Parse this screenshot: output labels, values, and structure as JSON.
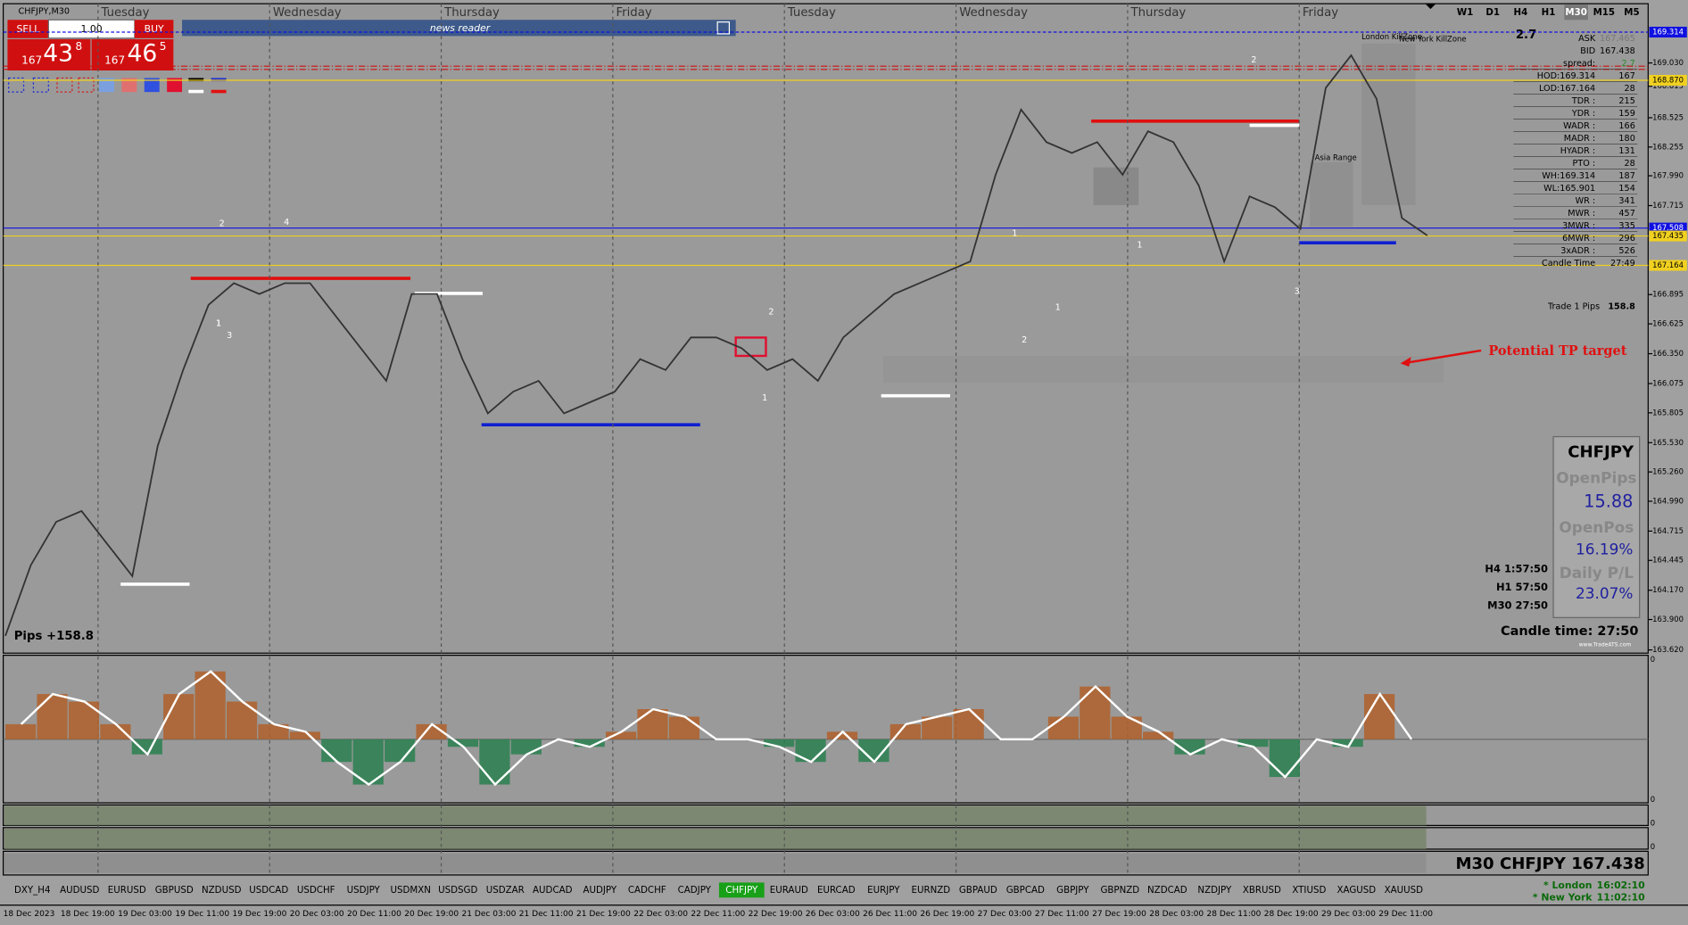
{
  "window_title": "CHFJPY,M30",
  "trade_panel": {
    "sell": "SELL",
    "lot": "1.00",
    "buy": "BUY",
    "bid": {
      "big": "167",
      "mid": "43",
      "small": "8"
    },
    "ask": {
      "big": "167",
      "mid": "46",
      "small": "5"
    }
  },
  "news_reader": "news reader",
  "timeframes": [
    "W1",
    "D1",
    "H4",
    "H1",
    "M30",
    "M15",
    "M5"
  ],
  "active_timeframe": 4,
  "day_labels": [
    "Tuesday",
    "Wednesday",
    "Thursday",
    "Friday",
    "Tuesday",
    "Wednesday",
    "Thursday",
    "Friday"
  ],
  "price_axis": {
    "ticks": [
      {
        "value": 169.03,
        "label": "169.030"
      },
      {
        "value": 168.815,
        "label": "168.815"
      },
      {
        "value": 168.525,
        "label": "168.525"
      },
      {
        "value": 168.255,
        "label": "168.255"
      },
      {
        "value": 167.99,
        "label": "167.990"
      },
      {
        "value": 167.715,
        "label": "167.715"
      },
      {
        "value": 166.895,
        "label": "166.895"
      },
      {
        "value": 166.625,
        "label": "166.625"
      },
      {
        "value": 166.35,
        "label": "166.350"
      },
      {
        "value": 166.075,
        "label": "166.075"
      },
      {
        "value": 165.805,
        "label": "165.805"
      },
      {
        "value": 165.53,
        "label": "165.530"
      },
      {
        "value": 165.26,
        "label": "165.260"
      },
      {
        "value": 164.99,
        "label": "164.990"
      },
      {
        "value": 164.715,
        "label": "164.715"
      },
      {
        "value": 164.445,
        "label": "164.445"
      },
      {
        "value": 164.17,
        "label": "164.170"
      },
      {
        "value": 163.9,
        "label": "163.900"
      },
      {
        "value": 163.62,
        "label": "163.620"
      }
    ],
    "levels": [
      {
        "value": 169.314,
        "label": "169.314",
        "color": "#1010e0"
      },
      {
        "value": 168.87,
        "label": "168.870",
        "color": "#f0d020"
      },
      {
        "value": 167.508,
        "label": "167.508",
        "color": "#1010e0"
      },
      {
        "value": 167.435,
        "label": "167.435",
        "color": "#f0d020"
      },
      {
        "value": 167.164,
        "label": "167.164",
        "color": "#f0d020"
      }
    ]
  },
  "price_series": [
    163.75,
    164.4,
    164.8,
    164.9,
    164.6,
    164.3,
    165.5,
    166.2,
    166.8,
    167.0,
    166.9,
    167.0,
    167.0,
    166.7,
    166.4,
    166.1,
    166.9,
    166.9,
    166.3,
    165.8,
    166.0,
    166.1,
    165.8,
    165.9,
    166.0,
    166.3,
    166.2,
    166.5,
    166.5,
    166.4,
    166.2,
    166.3,
    166.1,
    166.5,
    166.7,
    166.9,
    167.0,
    167.1,
    167.2,
    168.0,
    168.6,
    168.3,
    168.2,
    168.3,
    168.0,
    168.4,
    168.3,
    167.9,
    167.2,
    167.8,
    167.7,
    167.5,
    168.8,
    169.1,
    168.7,
    167.6,
    167.44
  ],
  "markers": [
    "2",
    "4",
    "1",
    "3",
    "1",
    "1",
    "2",
    "1",
    "1",
    "2",
    "3",
    "2",
    "1"
  ],
  "zones": [
    "Asia Range",
    "London KillZone",
    "New York KillZone"
  ],
  "info_panel": {
    "top": "2.7",
    "rows": [
      [
        "ASK",
        "167.465"
      ],
      [
        "BID",
        "167.438"
      ],
      [
        "spread:",
        "2.7"
      ],
      [
        "HOD:169.314",
        "167"
      ],
      [
        "LOD:167.164",
        "28"
      ],
      [
        "TDR :",
        "215"
      ],
      [
        "YDR :",
        "159"
      ],
      [
        "WADR :",
        "166"
      ],
      [
        "MADR :",
        "180"
      ],
      [
        "HYADR :",
        "131"
      ],
      [
        "PTO :",
        "28"
      ],
      [
        "WH:169.314",
        "187"
      ],
      [
        "WL:165.901",
        "154"
      ],
      [
        "WR :",
        "341"
      ],
      [
        "MWR :",
        "457"
      ],
      [
        "3MWR :",
        "335"
      ],
      [
        "6MWR :",
        "296"
      ],
      [
        "3xADR :",
        "526"
      ],
      [
        "Candle Time",
        "27:49"
      ]
    ],
    "trade": [
      "Trade 1 Pips",
      "158.8"
    ]
  },
  "tp_note": "Potential TP target",
  "pips": "Pips +158.8",
  "stats_box": {
    "symbol": "CHFJPY",
    "open_pips_label": "OpenPips",
    "open_pips": "15.88",
    "open_pos_label": "OpenPos",
    "open_pos": "16.19%",
    "daily_label": "Daily P/L",
    "daily": "23.07%",
    "site": "www.TradeATS.com"
  },
  "timers": [
    "H4 1:57:50",
    "H1 57:50",
    "M30 27:50"
  ],
  "candle_time": "Candle time:  27:50",
  "oscillator": {
    "zero": "0",
    "values": [
      0.2,
      0.6,
      0.5,
      0.2,
      -0.2,
      0.6,
      0.9,
      0.5,
      0.2,
      0.1,
      -0.3,
      -0.6,
      -0.3,
      0.2,
      -0.1,
      -0.6,
      -0.2,
      0.0,
      -0.1,
      0.1,
      0.4,
      0.3,
      0.0,
      0.0,
      -0.1,
      -0.3,
      0.1,
      -0.3,
      0.2,
      0.3,
      0.4,
      0.0,
      0.0,
      0.3,
      0.7,
      0.3,
      0.1,
      -0.2,
      0.0,
      -0.1,
      -0.5,
      0.0,
      -0.1,
      0.6,
      0.0
    ]
  },
  "sub_panel_zero": [
    "0",
    "0",
    "0"
  ],
  "quote_title": "M30 CHFJPY 167.438",
  "symbols": [
    "DXY_H4",
    "AUDUSD",
    "EURUSD",
    "GBPUSD",
    "NZDUSD",
    "USDCAD",
    "USDCHF",
    "USDJPY",
    "USDMXN",
    "USDSGD",
    "USDZAR",
    "AUDCAD",
    "AUDJPY",
    "CADCHF",
    "CADJPY",
    "CHFJPY",
    "EURAUD",
    "EURCAD",
    "EURJPY",
    "EURNZD",
    "GBPAUD",
    "GBPCAD",
    "GBPJPY",
    "GBPNZD",
    "NZDCAD",
    "NZDJPY",
    "XBRUSD",
    "XTIUSD",
    "XAGUSD",
    "XAUUSD"
  ],
  "active_symbol": 15,
  "clocks": [
    [
      "* London",
      "16:02:10"
    ],
    [
      "* New York",
      "11:02:10"
    ]
  ],
  "dates": [
    "18 Dec 2023",
    "18 Dec 19:00",
    "19 Dec 03:00",
    "19 Dec 11:00",
    "19 Dec 19:00",
    "20 Dec 03:00",
    "20 Dec 11:00",
    "20 Dec 19:00",
    "21 Dec 03:00",
    "21 Dec 11:00",
    "21 Dec 19:00",
    "22 Dec 03:00",
    "22 Dec 11:00",
    "22 Dec 19:00",
    "26 Dec 03:00",
    "26 Dec 11:00",
    "26 Dec 19:00",
    "27 Dec 03:00",
    "27 Dec 11:00",
    "27 Dec 19:00",
    "28 Dec 03:00",
    "28 Dec 11:00",
    "28 Dec 19:00",
    "29 Dec 03:00",
    "29 Dec 11:00"
  ]
}
